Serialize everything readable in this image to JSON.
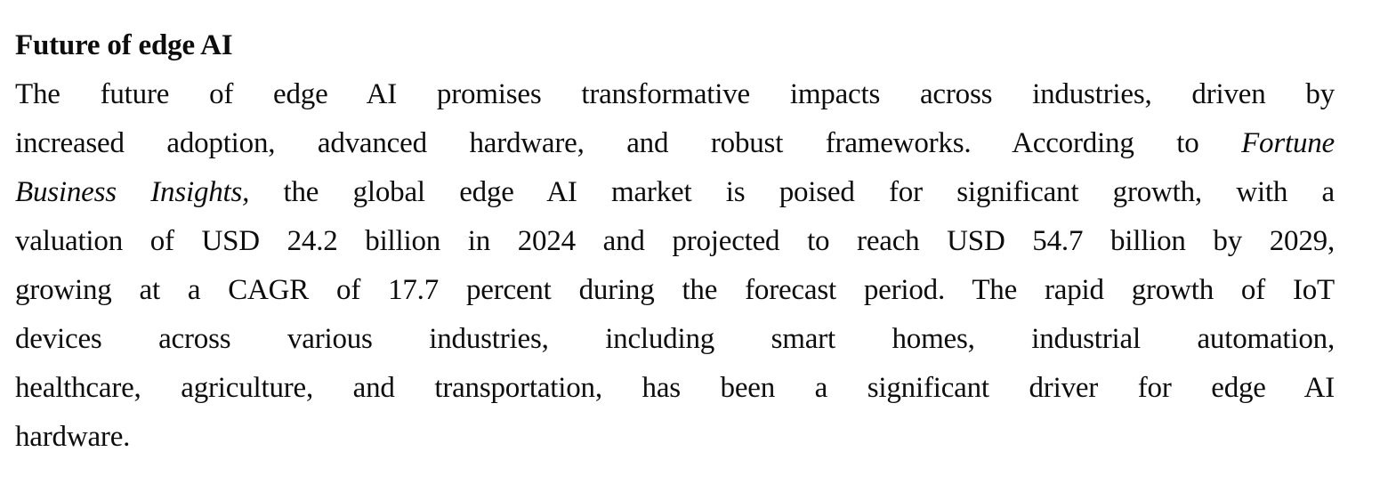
{
  "document": {
    "heading": "Future of edge AI",
    "colors": {
      "text": "#0d0d0d",
      "background": "#ffffff"
    },
    "paragraph": {
      "full_text": "The future of edge AI promises transformative impacts across industries, driven by increased adoption, advanced hardware, and robust frameworks. According to Fortune Business Insights, the global edge AI market is poised for significant growth, with a valuation of USD 24.2 billion in 2024 and projected to reach USD 54.7 billion by 2029, growing at a CAGR of 17.7 percent during the forecast period. The rapid growth of IoT devices across various industries, including smart homes, industrial automation, healthcare, agriculture, and transportation, has been a significant driver for edge AI hardware.",
      "italic_phrase": "Fortune Business Insights,",
      "lines": [
        {
          "runs": [
            {
              "text": "The future of edge AI promises transformative impacts across industries, driven by",
              "italic": false
            }
          ]
        },
        {
          "runs": [
            {
              "text": "increased adoption, advanced hardware, and robust frameworks. According to ",
              "italic": false
            },
            {
              "text": "Fortune",
              "italic": true
            }
          ]
        },
        {
          "runs": [
            {
              "text": "Business Insights,",
              "italic": true
            },
            {
              "text": " the global edge AI market is poised for significant growth, with a",
              "italic": false
            }
          ]
        },
        {
          "runs": [
            {
              "text": "valuation of USD 24.2 billion in 2024 and projected to reach USD 54.7 billion by 2029,",
              "italic": false
            }
          ]
        },
        {
          "runs": [
            {
              "text": "growing at a CAGR of 17.7 percent during the forecast period. The rapid growth of IoT",
              "italic": false
            }
          ]
        },
        {
          "runs": [
            {
              "text": "devices across various industries, including smart homes, industrial automation,",
              "italic": false
            }
          ]
        },
        {
          "runs": [
            {
              "text": "healthcare, agriculture, and transportation, has been a significant driver for edge AI",
              "italic": false
            }
          ]
        },
        {
          "runs": [
            {
              "text": "hardware.",
              "italic": false
            }
          ]
        }
      ]
    }
  }
}
